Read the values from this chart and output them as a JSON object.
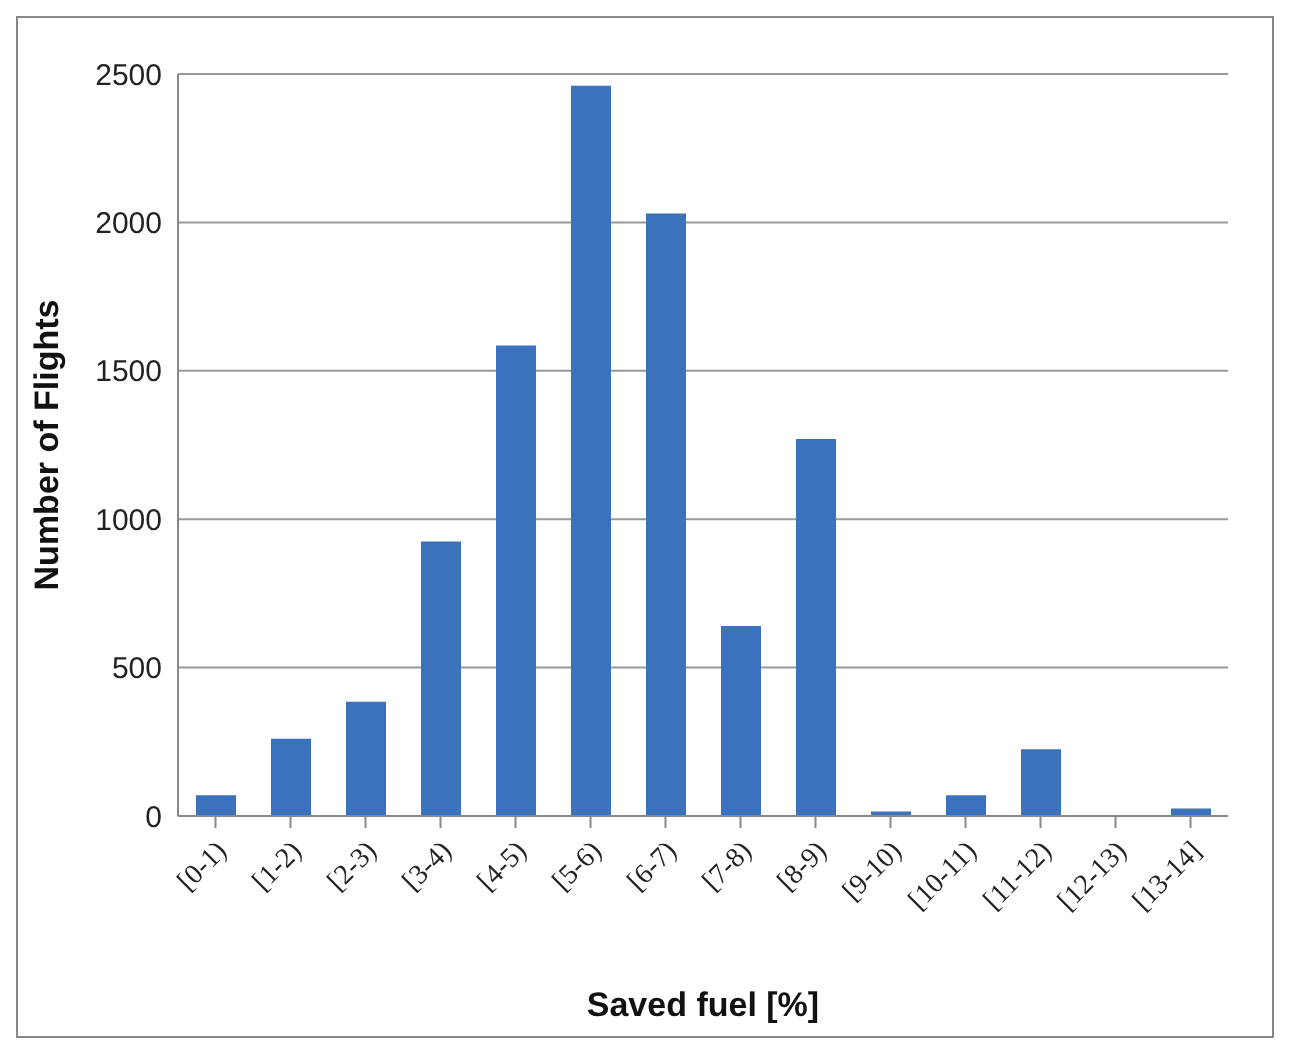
{
  "chart_data": {
    "type": "bar",
    "xlabel": "Saved fuel [%]",
    "ylabel": "Number of Flights",
    "categories": [
      "[0-1)",
      "[1-2)",
      "[2-3)",
      "[3-4)",
      "[4-5)",
      "[5-6)",
      "[6-7)",
      "[7-8)",
      "[8-9)",
      "[9-10)",
      "[10-11)",
      "[11-12)",
      "[12-13)",
      "[13-14]"
    ],
    "values": [
      70,
      260,
      385,
      925,
      1585,
      2460,
      2030,
      640,
      1270,
      15,
      70,
      225,
      0,
      25
    ],
    "color": "#3a72bd",
    "ylim": [
      0,
      2500
    ],
    "yticks": [
      0,
      500,
      1000,
      1500,
      2000,
      2500
    ],
    "grid": "y"
  }
}
